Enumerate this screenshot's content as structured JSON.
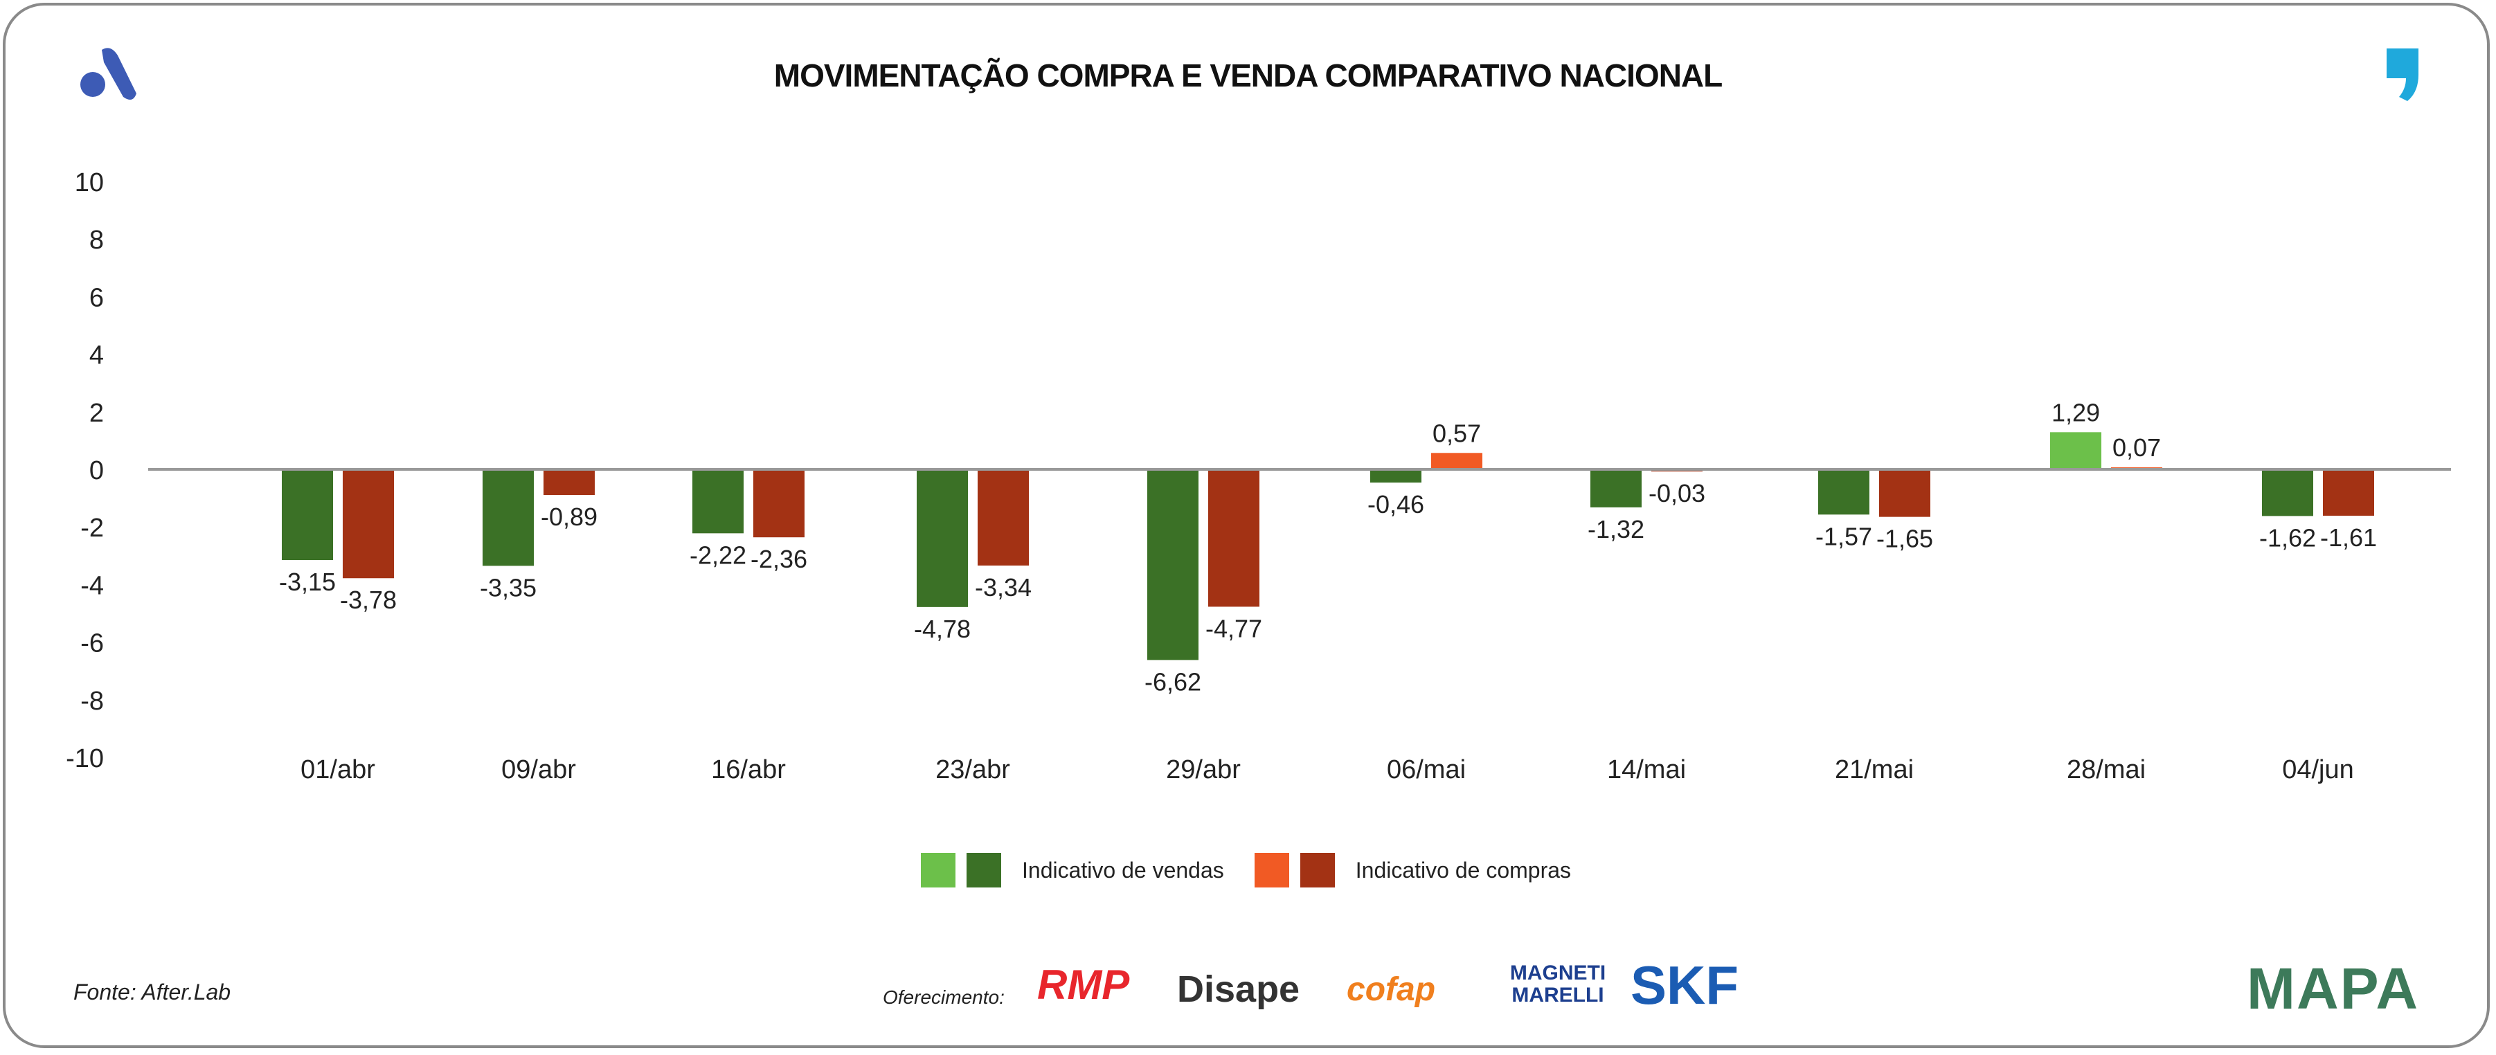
{
  "chart_data": {
    "type": "bar",
    "title": "MOVIMENTAÇÃO COMPRA E VENDA COMPARATIVO NACIONAL",
    "categories": [
      "01/abr",
      "09/abr",
      "16/abr",
      "23/abr",
      "29/abr",
      "06/mai",
      "14/mai",
      "21/mai",
      "28/mai",
      "04/jun"
    ],
    "series": [
      {
        "name": "Indicativo de vendas",
        "values": [
          -3.15,
          -3.35,
          -2.22,
          -4.78,
          -6.62,
          -0.46,
          -1.32,
          -1.57,
          1.29,
          -1.62
        ],
        "labels": [
          "-3,15",
          "-3,35",
          "-2,22",
          "-4,78",
          "-6,62",
          "-0,46",
          "-1,32",
          "-1,57",
          "1,29",
          "-1,62"
        ],
        "color_negative": "#3b7126",
        "color_positive": "#6cc04a"
      },
      {
        "name": "Indicativo de compras",
        "values": [
          -3.78,
          -0.89,
          -2.36,
          -3.34,
          -4.77,
          0.57,
          -0.03,
          -1.65,
          0.07,
          -1.61
        ],
        "labels": [
          "-3,78",
          "-0,89",
          "-2,36",
          "-3,34",
          "-4,77",
          "0,57",
          "-0,03",
          "-1,65",
          "0,07",
          "-1,61"
        ],
        "color_negative": "#a33214",
        "color_positive": "#f15a24"
      }
    ],
    "ylim": [
      -10,
      10
    ],
    "yticks": [
      "10",
      "8",
      "6",
      "4",
      "2",
      "0",
      "-2",
      "-4",
      "-6",
      "-8",
      "-10"
    ],
    "grid": false,
    "legend_position": "bottom"
  },
  "footer": {
    "source": "Fonte: After.Lab",
    "sponsor_label": "Oferecimento:",
    "sponsors": [
      "RMP",
      "Disape",
      "cofap",
      "MAGNETI MARELLI",
      "SKF"
    ],
    "brand": "MAPA"
  },
  "icons": {
    "top_left": "afterlab-logo-icon",
    "top_right": "comma-logo-icon"
  }
}
